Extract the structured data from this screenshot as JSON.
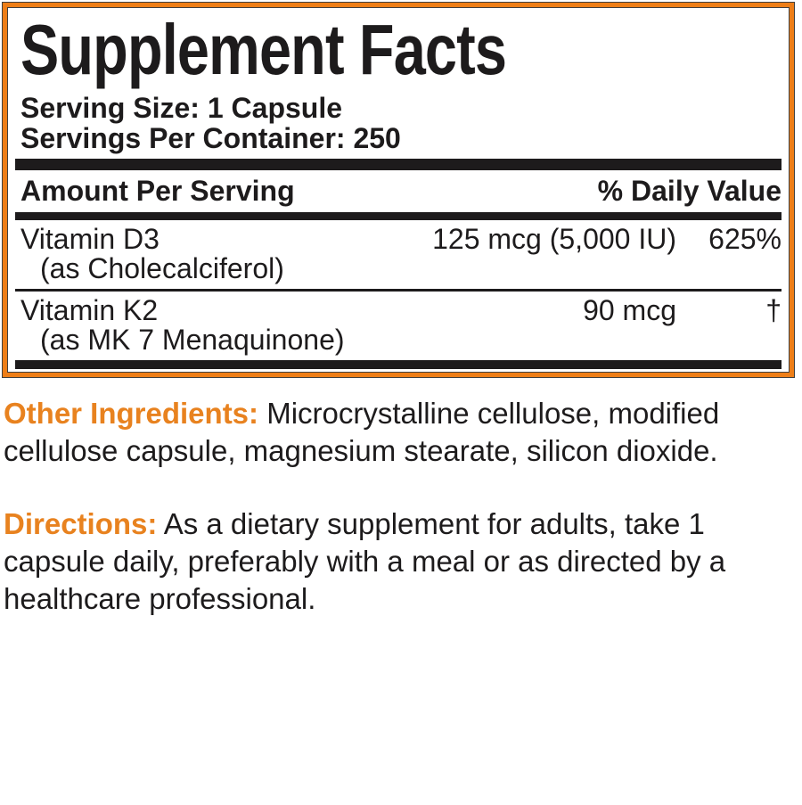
{
  "colors": {
    "accent_orange_text": "#E8821F",
    "border_orange": "#EE7E17",
    "ink_black": "#1D1B1C",
    "background": "#FFFFFF"
  },
  "panel": {
    "title": "Supplement Facts",
    "serving_size": "Serving Size: 1 Capsule",
    "servings_per_container": "Servings Per Container: 250",
    "header": {
      "amount_label": "Amount Per Serving",
      "daily_value_label": "% Daily Value"
    },
    "rows": [
      {
        "name": "Vitamin D3",
        "note": "(as Cholecalciferol)",
        "amount": "125 mcg (5,000 IU)",
        "daily_value": "625%"
      },
      {
        "name": "Vitamin K2",
        "note": "(as MK 7 Menaquinone)",
        "amount": "90 mcg",
        "daily_value": "†"
      }
    ]
  },
  "other_ingredients": {
    "label": "Other Ingredients:",
    "text": "Microcrystalline cellulose, modified cellulose capsule, magnesium stearate, silicon dioxide."
  },
  "directions": {
    "label": "Directions:",
    "text": "As a dietary supplement for adults, take 1 capsule daily, preferably with a meal or as directed by a healthcare professional."
  }
}
